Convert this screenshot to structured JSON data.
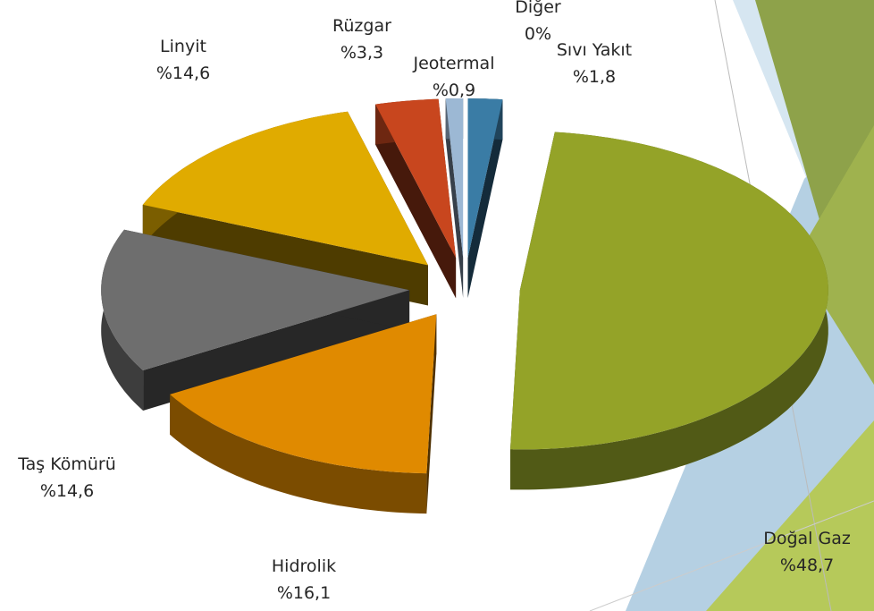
{
  "chart_data": {
    "type": "pie3d",
    "categories": [
      "Sıvı Yakıt",
      "Doğal Gaz",
      "Hidrolik",
      "Taş Kömürü",
      "Linyit",
      "Rüzgar",
      "Jeotermal",
      "Diğer"
    ],
    "values": [
      1.8,
      48.7,
      16.1,
      14.6,
      14.6,
      3.3,
      0.9,
      0
    ],
    "value_labels": [
      "%1,8",
      "%48,7",
      "%16,1",
      "%14,6",
      "%14,6",
      "%3,3",
      "%0,9",
      "0%"
    ],
    "colors": [
      "#3a7ca5",
      "#94a328",
      "#e08a00",
      "#6e6e6e",
      "#e0ab00",
      "#c8461e",
      "#9cb8d4",
      "#7a9cc0"
    ]
  }
}
